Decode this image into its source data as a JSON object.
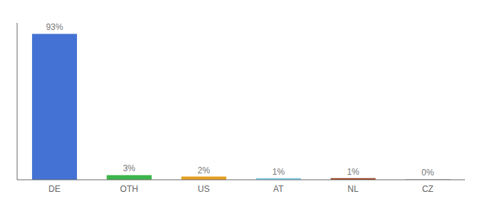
{
  "chart_data": {
    "type": "bar",
    "categories": [
      "DE",
      "OTH",
      "US",
      "AT",
      "NL",
      "CZ"
    ],
    "values": [
      93,
      3,
      2,
      1,
      1,
      0.3
    ],
    "value_labels": [
      "93%",
      "3%",
      "2%",
      "1%",
      "1%",
      "0%"
    ],
    "colors": [
      "#4472d4",
      "#3cb54a",
      "#e8a020",
      "#7ecef0",
      "#a04020",
      "#aaaaaa"
    ],
    "ylim": [
      0,
      100
    ],
    "data_labels": true,
    "tick_labels": "x"
  }
}
